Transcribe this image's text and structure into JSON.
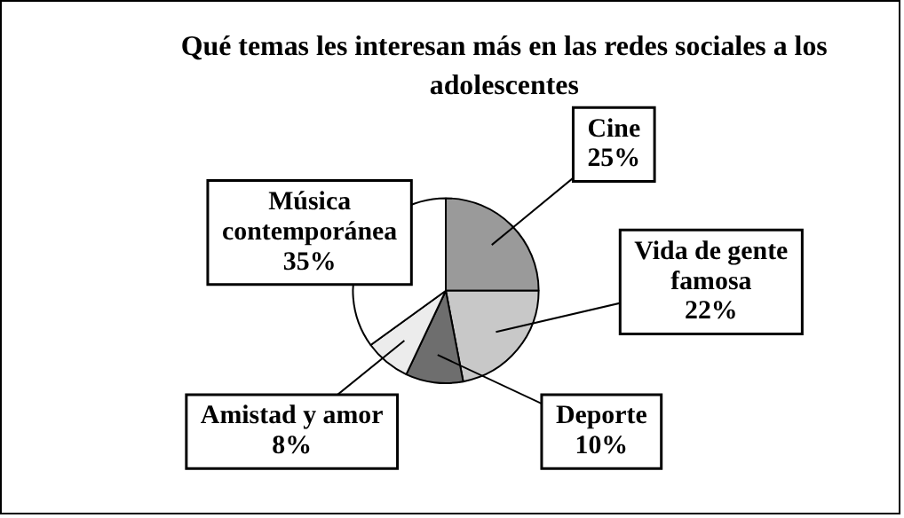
{
  "chart_data": {
    "type": "pie",
    "title": "Qué temas les interesan más en las redes sociales a los adolescentes",
    "categories": [
      "Cine",
      "Vida de gente famosa",
      "Deporte",
      "Amistad y amor",
      "Música contemporánea"
    ],
    "values": [
      25,
      22,
      10,
      8,
      35
    ],
    "colors": [
      "#9a9a9a",
      "#c8c8c8",
      "#6e6e6e",
      "#ececec",
      "#ffffff"
    ],
    "value_labels": [
      "25%",
      "22%",
      "10%",
      "8%",
      "35%"
    ],
    "legend": false
  }
}
